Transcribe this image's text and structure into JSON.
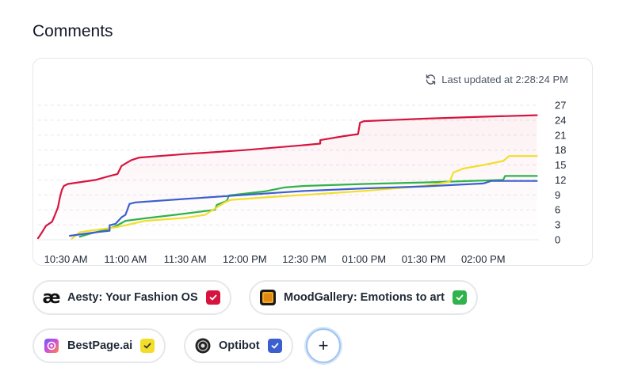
{
  "section": {
    "title": "Comments"
  },
  "updated": {
    "text": "Last updated at 2:28:24 PM",
    "icon": "refresh-icon"
  },
  "chart_data": {
    "type": "line",
    "y_ticks": [
      0,
      3,
      6,
      9,
      12,
      15,
      18,
      21,
      24,
      27
    ],
    "x_ticks": [
      "10:30 AM",
      "11:00 AM",
      "11:30 AM",
      "12:00 PM",
      "12:30 PM",
      "01:00 PM",
      "01:30 PM",
      "02:00 PM"
    ],
    "y_axis_position": "right",
    "grid": "horizontal dashed",
    "ylim": [
      0,
      27
    ],
    "xlim": [
      "10:16 AM",
      "02:28 PM"
    ],
    "series": [
      {
        "name": "Aesty: Your Fashion OS",
        "color": "#d6153f",
        "points": [
          [
            "10:16 AM",
            0.3
          ],
          [
            "10:18 AM",
            1.5
          ],
          [
            "10:20 AM",
            2.8
          ],
          [
            "10:23 AM",
            3.6
          ],
          [
            "10:24 AM",
            4.5
          ],
          [
            "10:26 AM",
            6.5
          ],
          [
            "10:27 AM",
            8.5
          ],
          [
            "10:28 AM",
            10.0
          ],
          [
            "10:29 AM",
            10.8
          ],
          [
            "10:31 AM",
            11.2
          ],
          [
            "10:45 AM",
            12.0
          ],
          [
            "10:52 AM",
            12.8
          ],
          [
            "10:56 AM",
            13.2
          ],
          [
            "10:58 AM",
            14.8
          ],
          [
            "11:00 AM",
            15.3
          ],
          [
            "11:03 AM",
            16.0
          ],
          [
            "11:07 AM",
            16.5
          ],
          [
            "11:30 AM",
            17.2
          ],
          [
            "12:00 PM",
            18.0
          ],
          [
            "12:30 PM",
            19.0
          ],
          [
            "12:38 PM",
            19.3
          ],
          [
            "12:38 PM",
            20.0
          ],
          [
            "12:50 PM",
            20.8
          ],
          [
            "12:57 PM",
            21.2
          ],
          [
            "12:58 PM",
            23.5
          ],
          [
            "01:00 PM",
            23.8
          ],
          [
            "01:30 PM",
            24.3
          ],
          [
            "02:00 PM",
            24.7
          ],
          [
            "02:27 PM",
            25.0
          ]
        ]
      },
      {
        "name": "MoodGallery: Emotions to art",
        "color": "#2fb34a",
        "points": [
          [
            "10:37 AM",
            0.6
          ],
          [
            "10:42 AM",
            1.2
          ],
          [
            "10:50 AM",
            2.0
          ],
          [
            "10:55 AM",
            2.7
          ],
          [
            "11:00 AM",
            3.8
          ],
          [
            "11:10 AM",
            4.3
          ],
          [
            "11:25 AM",
            5.0
          ],
          [
            "11:45 AM",
            6.0
          ],
          [
            "11:46 AM",
            7.0
          ],
          [
            "11:51 AM",
            7.8
          ],
          [
            "11:52 AM",
            8.9
          ],
          [
            "12:10 PM",
            9.7
          ],
          [
            "12:20 PM",
            10.5
          ],
          [
            "12:30 PM",
            10.8
          ],
          [
            "01:00 PM",
            11.2
          ],
          [
            "01:30 PM",
            11.5
          ],
          [
            "02:10 PM",
            12.0
          ],
          [
            "02:11 PM",
            12.8
          ],
          [
            "02:27 PM",
            12.8
          ]
        ]
      },
      {
        "name": "BestPage.ai",
        "color": "#f2de2a",
        "points": [
          [
            "10:33 AM",
            0.2
          ],
          [
            "10:37 AM",
            1.5
          ],
          [
            "10:40 AM",
            1.7
          ],
          [
            "10:55 AM",
            2.5
          ],
          [
            "11:00 AM",
            2.9
          ],
          [
            "11:10 AM",
            3.8
          ],
          [
            "11:30 AM",
            4.4
          ],
          [
            "11:40 AM",
            5.0
          ],
          [
            "11:50 AM",
            7.5
          ],
          [
            "11:53 AM",
            8.0
          ],
          [
            "12:10 PM",
            8.5
          ],
          [
            "12:30 PM",
            9.0
          ],
          [
            "01:00 PM",
            9.8
          ],
          [
            "01:30 PM",
            10.8
          ],
          [
            "01:43 PM",
            11.6
          ],
          [
            "01:45 PM",
            13.5
          ],
          [
            "01:50 PM",
            14.3
          ],
          [
            "02:00 PM",
            15.0
          ],
          [
            "02:10 PM",
            15.8
          ],
          [
            "02:13 PM",
            16.8
          ],
          [
            "02:27 PM",
            16.8
          ]
        ]
      },
      {
        "name": "Optibot",
        "color": "#3c5fcf",
        "points": [
          [
            "10:32 AM",
            0.8
          ],
          [
            "10:45 AM",
            1.5
          ],
          [
            "10:52 AM",
            1.8
          ],
          [
            "10:52 AM",
            2.9
          ],
          [
            "10:55 AM",
            3.2
          ],
          [
            "10:58 AM",
            4.5
          ],
          [
            "11:00 AM",
            5.0
          ],
          [
            "11:02 AM",
            7.2
          ],
          [
            "11:05 AM",
            7.5
          ],
          [
            "11:30 AM",
            8.2
          ],
          [
            "12:00 PM",
            9.0
          ],
          [
            "12:30 PM",
            9.8
          ],
          [
            "01:00 PM",
            10.3
          ],
          [
            "01:30 PM",
            10.7
          ],
          [
            "02:00 PM",
            11.3
          ],
          [
            "02:04 PM",
            11.8
          ],
          [
            "02:27 PM",
            11.8
          ]
        ]
      }
    ]
  },
  "chips": [
    {
      "label": "Aesty: Your Fashion OS",
      "logo": "aesty-logo",
      "logo_text": "æ",
      "checked": true,
      "color": "#d6153f"
    },
    {
      "label": "MoodGallery: Emotions to art",
      "logo": "moodgallery-logo",
      "checked": true,
      "color": "#2fb34a"
    },
    {
      "label": "BestPage.ai",
      "logo": "bestpage-logo",
      "checked": true,
      "color": "#f2de2a"
    },
    {
      "label": "Optibot",
      "logo": "optibot-logo",
      "checked": true,
      "color": "#3c5fcf"
    }
  ],
  "add_button": {
    "label": "+"
  }
}
